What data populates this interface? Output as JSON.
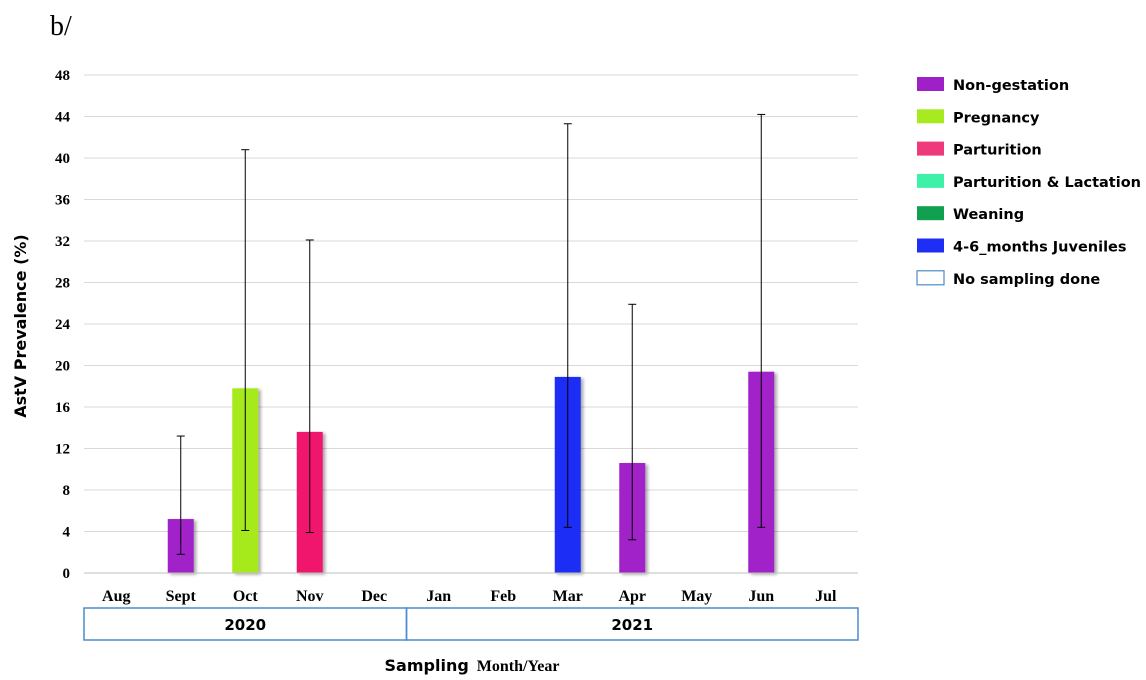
{
  "panel_label": "b/",
  "chart_data": {
    "type": "bar",
    "ylabel": "AstV Prevalence (%)",
    "xlabel_part1": "Sampling",
    "xlabel_part2": "Month/Year",
    "ylim": [
      0,
      48
    ],
    "yticks": [
      0,
      4,
      8,
      12,
      16,
      20,
      24,
      28,
      32,
      36,
      40,
      44,
      48
    ],
    "grid": true,
    "categories": [
      "Aug",
      "Sept",
      "Oct",
      "Nov",
      "Dec",
      "Jan",
      "Feb",
      "Mar",
      "Apr",
      "May",
      "Jun",
      "Jul"
    ],
    "years": [
      {
        "label": "2020",
        "months": [
          "Aug",
          "Sept",
          "Oct",
          "Nov",
          "Dec"
        ]
      },
      {
        "label": "2021",
        "months": [
          "Jan",
          "Feb",
          "Mar",
          "Apr",
          "May",
          "Jun",
          "Jul"
        ]
      }
    ],
    "bars": [
      {
        "month": "Sept",
        "value": 5.2,
        "err_low": 1.8,
        "err_high": 13.2,
        "group": "Non-gestation"
      },
      {
        "month": "Oct",
        "value": 17.8,
        "err_low": 4.1,
        "err_high": 40.8,
        "group": "Pregnancy"
      },
      {
        "month": "Nov",
        "value": 13.6,
        "err_low": 3.9,
        "err_high": 32.1,
        "group": "Parturition"
      },
      {
        "month": "Mar",
        "value": 18.9,
        "err_low": 4.4,
        "err_high": 43.3,
        "group": "4-6_months Juveniles"
      },
      {
        "month": "Apr",
        "value": 10.6,
        "err_low": 3.2,
        "err_high": 25.9,
        "group": "Non-gestation"
      },
      {
        "month": "Jun",
        "value": 19.4,
        "err_low": 4.4,
        "err_high": 44.2,
        "group": "Non-gestation"
      }
    ],
    "legend_position": "right",
    "legend": [
      {
        "name": "Non-gestation",
        "color": "#a020c8",
        "filled": true
      },
      {
        "name": "Pregnancy",
        "color": "#a6ea1f",
        "filled": true
      },
      {
        "name": "Parturition",
        "color": "#ee3a7c",
        "filled": true
      },
      {
        "name": "Parturition & Lactation",
        "color": "#3ef0a8",
        "filled": true
      },
      {
        "name": "Weaning",
        "color": "#10a050",
        "filled": true
      },
      {
        "name": "4-6_months Juveniles",
        "color": "#1f2ef5",
        "filled": true
      },
      {
        "name": "No sampling done",
        "color": "#4a8ccc",
        "filled": false
      }
    ],
    "bar_colors": {
      "Non-gestation": "#a020c8",
      "Pregnancy": "#a6ea1f",
      "Parturition": "#f0186e",
      "4-6_months Juveniles": "#1f2ef5"
    }
  }
}
